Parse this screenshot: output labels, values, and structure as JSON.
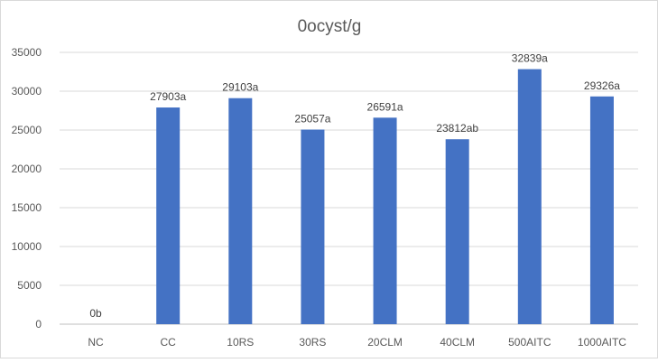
{
  "chart_data": {
    "type": "bar",
    "title": "0ocyst/g",
    "xlabel": "",
    "ylabel": "",
    "categories": [
      "NC",
      "CC",
      "10RS",
      "30RS",
      "20CLM",
      "40CLM",
      "500AITC",
      "1000AITC"
    ],
    "values": [
      0,
      27903,
      29103,
      25057,
      26591,
      23812,
      32839,
      29326
    ],
    "data_labels": [
      "0b",
      "27903a",
      "29103a",
      "25057a",
      "26591a",
      "23812ab",
      "32839a",
      "29326a"
    ],
    "ylim": [
      0,
      35000
    ],
    "yticks": [
      0,
      5000,
      10000,
      15000,
      20000,
      25000,
      30000,
      35000
    ],
    "grid": true,
    "legend": "none",
    "bar_color": "#4472C4"
  }
}
